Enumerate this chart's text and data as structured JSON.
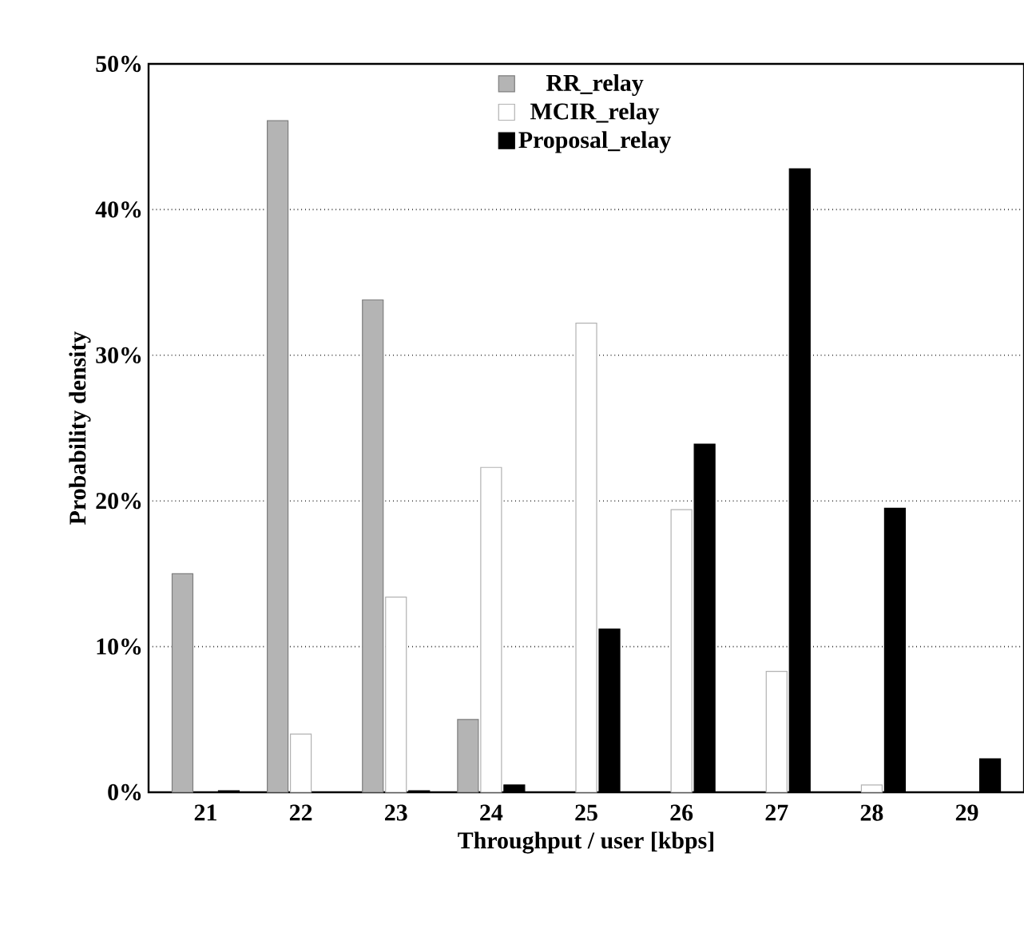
{
  "chart_data": {
    "type": "bar",
    "xlabel": "Throughput / user [kbps]",
    "ylabel": "Probability density",
    "categories": [
      "21",
      "22",
      "23",
      "24",
      "25",
      "26",
      "27",
      "28",
      "29"
    ],
    "series": [
      {
        "name": "RR_relay",
        "color": "#b4b4b4",
        "values": [
          15.0,
          46.1,
          33.8,
          5.0,
          null,
          null,
          null,
          null,
          null
        ]
      },
      {
        "name": "MCIR_relay",
        "color": "#ffffff",
        "values": [
          null,
          4.0,
          13.4,
          22.3,
          32.2,
          19.4,
          8.3,
          0.5,
          null
        ]
      },
      {
        "name": "Proposal_relay",
        "color": "#000000",
        "values": [
          0.1,
          null,
          0.1,
          0.5,
          11.2,
          23.9,
          42.8,
          19.5,
          2.3
        ]
      }
    ],
    "ylim": [
      0,
      50
    ],
    "yticks": [
      {
        "value": 0,
        "label": "0%"
      },
      {
        "value": 10,
        "label": "10%"
      },
      {
        "value": 20,
        "label": "20%"
      },
      {
        "value": 30,
        "label": "30%"
      },
      {
        "value": 40,
        "label": "40%"
      },
      {
        "value": 50,
        "label": "50%"
      }
    ],
    "grid": "y",
    "legend": "top"
  }
}
